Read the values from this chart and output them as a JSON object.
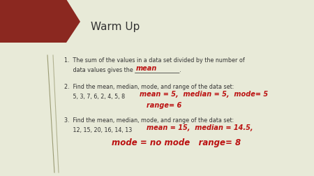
{
  "title": "Warm Up",
  "bg_color": "#e8ead8",
  "title_color": "#333333",
  "title_fontsize": 11,
  "corner_color": "#8B2820",
  "line1_printed": "1.  The sum of the values in a data set divided by the number of",
  "line1b_printed": "     data values gives the ________________.",
  "line1_hw": "mean",
  "line2_printed": "2.  Find the mean, median, mode, and range of the data set:",
  "line2b_printed": "     5, 3, 7, 6, 2, 4, 5, 8",
  "line2_hw": "mean = 5,  median = 5,  mode= 5",
  "line2b_hw": "range= 6",
  "line3_printed": "3.  Find the mean, median, mode, and range of the data set:",
  "line3b_printed": "     12, 15, 20, 16, 14, 13",
  "line3_hw": "mean = 15,  median = 14.5,",
  "line3b_hw": "mode = no mode   range= 8",
  "printed_color": "#333333",
  "hw_color": "#bb1111",
  "printed_fs": 5.8,
  "hw_fs1": 5.5,
  "hw_fs2": 7.0,
  "hw_fs3": 8.5,
  "deco_color": "#7a7a4a"
}
